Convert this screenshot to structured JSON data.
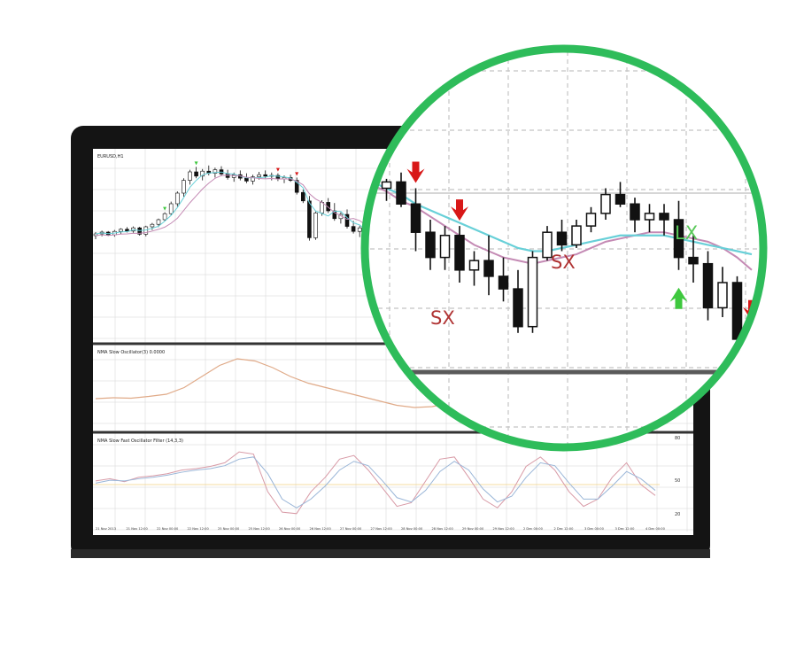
{
  "colors": {
    "background": "#ffffff",
    "laptop_bezel": "#141414",
    "chart_bg": "#ffffff",
    "grid": "#d4d4d4",
    "candle": "#111111",
    "ma_fast": "#68d0d8",
    "ma_slow": "#c48ab4",
    "osc_line": "#e0aa88",
    "stoch_main": "#d89aa6",
    "stoch_signal": "#9ab6d8",
    "stoch_level": "#f0d080",
    "magnifier_ring": "#2ebc5a",
    "signal_short": "#d81818",
    "signal_long": "#3ec83e",
    "sx_label": "#b03434",
    "lx_label": "#58c858"
  },
  "main_panel": {
    "title": "EURUSD,H1",
    "subtitle": ""
  },
  "oscillator_panel": {
    "title": "NMA Slow Oscillator(3) 0.0000"
  },
  "stochastic_panel": {
    "title": "NMA Slow Fast Oscillator Filter (14,3,3)",
    "levels": [
      "80",
      "50",
      "20"
    ]
  },
  "time_labels": [
    "21 Nov 2013",
    "21 Nov 12:00",
    "22 Nov 00:00",
    "22 Nov 12:00",
    "25 Nov 00:00",
    "25 Nov 12:00",
    "26 Nov 00:00",
    "26 Nov 12:00",
    "27 Nov 00:00",
    "27 Nov 12:00",
    "28 Nov 00:00",
    "28 Nov 12:00",
    "29 Nov 00:00",
    "29 Nov 12:00",
    "2 Dec 00:00",
    "2 Dec 12:00",
    "3 Dec 00:00",
    "3 Dec 12:00",
    "4 Dec 00:00"
  ],
  "chart_data": {
    "type": "candlestick",
    "main_candles": [
      {
        "o": 46.0,
        "h": 47.0,
        "l": 45.0,
        "c": 46.5
      },
      {
        "o": 46.5,
        "h": 47.4,
        "l": 45.8,
        "c": 47.0
      },
      {
        "o": 47.0,
        "h": 47.3,
        "l": 45.9,
        "c": 46.2
      },
      {
        "o": 46.2,
        "h": 47.6,
        "l": 45.7,
        "c": 47.2
      },
      {
        "o": 47.2,
        "h": 48.1,
        "l": 46.5,
        "c": 47.8
      },
      {
        "o": 47.8,
        "h": 48.4,
        "l": 46.9,
        "c": 47.3
      },
      {
        "o": 47.3,
        "h": 48.6,
        "l": 46.8,
        "c": 48.2
      },
      {
        "o": 48.2,
        "h": 48.5,
        "l": 46.0,
        "c": 46.4
      },
      {
        "o": 46.4,
        "h": 48.8,
        "l": 45.8,
        "c": 48.5
      },
      {
        "o": 48.5,
        "h": 49.6,
        "l": 47.6,
        "c": 49.2
      },
      {
        "o": 49.2,
        "h": 50.8,
        "l": 48.4,
        "c": 50.5
      },
      {
        "o": 50.5,
        "h": 52.6,
        "l": 50.0,
        "c": 52.2
      },
      {
        "o": 52.2,
        "h": 55.6,
        "l": 51.8,
        "c": 55.0
      },
      {
        "o": 55.0,
        "h": 58.5,
        "l": 54.2,
        "c": 58.0
      },
      {
        "o": 58.0,
        "h": 62.2,
        "l": 57.0,
        "c": 61.6
      },
      {
        "o": 61.6,
        "h": 64.6,
        "l": 60.4,
        "c": 64.0
      },
      {
        "o": 64.0,
        "h": 65.4,
        "l": 62.2,
        "c": 62.8
      },
      {
        "o": 62.8,
        "h": 64.8,
        "l": 61.6,
        "c": 64.2
      },
      {
        "o": 64.2,
        "h": 65.8,
        "l": 63.0,
        "c": 63.6
      },
      {
        "o": 63.6,
        "h": 65.2,
        "l": 62.4,
        "c": 64.6
      },
      {
        "o": 64.6,
        "h": 65.6,
        "l": 62.8,
        "c": 63.4
      },
      {
        "o": 63.4,
        "h": 64.6,
        "l": 61.8,
        "c": 62.4
      },
      {
        "o": 62.4,
        "h": 63.8,
        "l": 61.2,
        "c": 63.2
      },
      {
        "o": 63.2,
        "h": 64.4,
        "l": 61.6,
        "c": 62.2
      },
      {
        "o": 62.2,
        "h": 63.6,
        "l": 60.8,
        "c": 61.4
      },
      {
        "o": 61.4,
        "h": 63.2,
        "l": 60.4,
        "c": 62.6
      },
      {
        "o": 62.6,
        "h": 64.0,
        "l": 61.8,
        "c": 63.2
      },
      {
        "o": 63.2,
        "h": 64.4,
        "l": 62.2,
        "c": 62.8
      },
      {
        "o": 62.8,
        "h": 63.8,
        "l": 61.6,
        "c": 63.0
      },
      {
        "o": 63.0,
        "h": 63.6,
        "l": 61.4,
        "c": 62.0
      },
      {
        "o": 62.0,
        "h": 63.0,
        "l": 60.8,
        "c": 62.4
      },
      {
        "o": 62.4,
        "h": 63.2,
        "l": 61.2,
        "c": 61.6
      },
      {
        "o": 61.6,
        "h": 62.4,
        "l": 57.6,
        "c": 58.2
      },
      {
        "o": 58.2,
        "h": 59.0,
        "l": 55.2,
        "c": 55.8
      },
      {
        "o": 55.8,
        "h": 57.2,
        "l": 44.6,
        "c": 45.4
      },
      {
        "o": 45.4,
        "h": 52.8,
        "l": 44.8,
        "c": 52.4
      },
      {
        "o": 52.4,
        "h": 56.0,
        "l": 51.6,
        "c": 55.4
      },
      {
        "o": 55.4,
        "h": 56.6,
        "l": 52.4,
        "c": 53.0
      },
      {
        "o": 53.0,
        "h": 55.2,
        "l": 50.2,
        "c": 50.8
      },
      {
        "o": 50.8,
        "h": 52.6,
        "l": 49.4,
        "c": 52.0
      },
      {
        "o": 52.0,
        "h": 53.4,
        "l": 48.0,
        "c": 48.6
      },
      {
        "o": 48.6,
        "h": 50.2,
        "l": 46.6,
        "c": 47.2
      },
      {
        "o": 47.2,
        "h": 48.8,
        "l": 45.6,
        "c": 48.2
      },
      {
        "o": 48.2,
        "h": 49.0,
        "l": 45.8,
        "c": 46.4
      },
      {
        "o": 46.4,
        "h": 48.4,
        "l": 45.2,
        "c": 47.8
      },
      {
        "o": 47.8,
        "h": 49.4,
        "l": 46.8,
        "c": 48.8
      }
    ],
    "zoom_candles": [
      {
        "o": 54,
        "h": 56,
        "l": 49,
        "c": 50
      },
      {
        "o": 50,
        "h": 53,
        "l": 46,
        "c": 52
      },
      {
        "o": 52,
        "h": 55,
        "l": 44,
        "c": 45
      },
      {
        "o": 45,
        "h": 50,
        "l": 30,
        "c": 36
      },
      {
        "o": 36,
        "h": 40,
        "l": 24,
        "c": 28
      },
      {
        "o": 28,
        "h": 38,
        "l": 24,
        "c": 35
      },
      {
        "o": 35,
        "h": 38,
        "l": 20,
        "c": 24
      },
      {
        "o": 24,
        "h": 30,
        "l": 19,
        "c": 27
      },
      {
        "o": 27,
        "h": 35,
        "l": 16,
        "c": 22
      },
      {
        "o": 22,
        "h": 28,
        "l": 14,
        "c": 18
      },
      {
        "o": 18,
        "h": 24,
        "l": 4,
        "c": 6
      },
      {
        "o": 6,
        "h": 30,
        "l": 4,
        "c": 28
      },
      {
        "o": 28,
        "h": 38,
        "l": 27,
        "c": 36
      },
      {
        "o": 36,
        "h": 40,
        "l": 30,
        "c": 32
      },
      {
        "o": 32,
        "h": 40,
        "l": 31,
        "c": 38
      },
      {
        "o": 38,
        "h": 44,
        "l": 36,
        "c": 42
      },
      {
        "o": 42,
        "h": 50,
        "l": 40,
        "c": 48
      },
      {
        "o": 48,
        "h": 52,
        "l": 44,
        "c": 45
      },
      {
        "o": 45,
        "h": 47,
        "l": 36,
        "c": 40
      },
      {
        "o": 40,
        "h": 45,
        "l": 36,
        "c": 42
      },
      {
        "o": 42,
        "h": 45,
        "l": 35,
        "c": 40
      },
      {
        "o": 40,
        "h": 46,
        "l": 24,
        "c": 28
      },
      {
        "o": 28,
        "h": 35,
        "l": 20,
        "c": 26
      },
      {
        "o": 26,
        "h": 30,
        "l": 8,
        "c": 12
      },
      {
        "o": 12,
        "h": 25,
        "l": 9,
        "c": 20
      },
      {
        "o": 20,
        "h": 22,
        "l": 0,
        "c": 2
      },
      {
        "o": 2,
        "h": 6,
        "l": -5,
        "c": -3
      }
    ],
    "zoom_ma_fast": [
      52,
      50,
      48,
      45,
      43,
      41,
      39,
      37,
      35,
      33,
      31,
      30,
      30,
      31,
      32,
      33,
      34,
      35,
      35,
      35,
      35,
      34,
      33,
      32,
      31,
      30,
      29
    ],
    "zoom_ma_slow": [
      51,
      49,
      46,
      44,
      41,
      38,
      35,
      32,
      30,
      28,
      27,
      26,
      27,
      28,
      29,
      31,
      33,
      34,
      35,
      36,
      36,
      35,
      34,
      33,
      31,
      28,
      24
    ],
    "short_signal_bars": [
      3,
      6,
      26
    ],
    "long_signal_bars": [
      21
    ],
    "annotations": [
      "SX",
      "SX",
      "LX"
    ],
    "oscillator": [
      0.1,
      0.12,
      0.11,
      0.15,
      0.2,
      0.35,
      0.6,
      0.85,
      1.0,
      0.95,
      0.8,
      0.6,
      0.45,
      0.35,
      0.25,
      0.15,
      0.05,
      -0.05,
      -0.1,
      -0.08,
      0.0,
      0.1,
      0.15,
      0.12,
      0.05,
      -0.05,
      -0.1,
      -0.08,
      -0.04,
      0.02,
      0.08,
      0.12
    ],
    "stoch_main": [
      55,
      58,
      54,
      60,
      62,
      65,
      70,
      72,
      75,
      80,
      95,
      92,
      40,
      12,
      10,
      40,
      60,
      85,
      90,
      70,
      45,
      20,
      25,
      55,
      85,
      88,
      60,
      30,
      18,
      40,
      75,
      88,
      70,
      40,
      20,
      30,
      60,
      80,
      50,
      35
    ],
    "stoch_signal": [
      52,
      56,
      55,
      58,
      60,
      63,
      67,
      70,
      72,
      76,
      85,
      88,
      65,
      30,
      18,
      30,
      48,
      70,
      82,
      76,
      55,
      32,
      26,
      42,
      68,
      82,
      70,
      44,
      26,
      34,
      60,
      80,
      76,
      52,
      30,
      30,
      48,
      68,
      58,
      42
    ],
    "stoch_levels": [
      80,
      50,
      20
    ]
  }
}
